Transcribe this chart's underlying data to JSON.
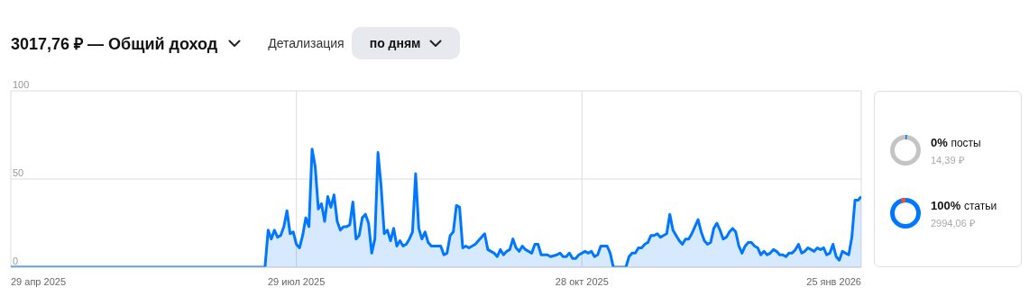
{
  "chart_data": [
    {
      "type": "area",
      "title": "3017,76 ₽ — Общий доход",
      "annotations": [
        "Детализация",
        "по дням"
      ],
      "xlim": [
        "2025-04-29",
        "2026-01-25"
      ],
      "xticks": [
        {
          "value": "2025-04-29",
          "label": "29 апр 2025"
        },
        {
          "value": "2025-07-29",
          "label": "29 июл 2025"
        },
        {
          "value": "2025-10-28",
          "label": "28 окт 2025"
        },
        {
          "value": "2026-01-25",
          "label": "25 янв 2026"
        }
      ],
      "ylim": [
        0,
        100
      ],
      "yticks": [
        0,
        50,
        100
      ],
      "grid": true,
      "marker": "none",
      "series": [
        {
          "color": "#0077ff",
          "x": [
            "2025-04-29",
            "2025-07-19",
            "2025-07-20",
            "2025-07-21",
            "2025-07-22",
            "2025-07-23",
            "2025-07-24",
            "2025-07-25",
            "2025-07-26",
            "2025-07-27",
            "2025-07-28",
            "2025-07-29",
            "2025-07-30",
            "2025-07-31",
            "2025-08-01",
            "2025-08-02",
            "2025-08-03",
            "2025-08-04",
            "2025-08-05",
            "2025-08-06",
            "2025-08-07",
            "2025-08-08",
            "2025-08-09",
            "2025-08-10",
            "2025-08-11",
            "2025-08-12",
            "2025-08-13",
            "2025-08-14",
            "2025-08-15",
            "2025-08-16",
            "2025-08-17",
            "2025-08-18",
            "2025-08-19",
            "2025-08-20",
            "2025-08-21",
            "2025-08-22",
            "2025-08-23",
            "2025-08-24",
            "2025-08-25",
            "2025-08-26",
            "2025-08-27",
            "2025-08-28",
            "2025-08-29",
            "2025-08-30",
            "2025-08-31",
            "2025-09-01",
            "2025-09-02",
            "2025-09-03",
            "2025-09-04",
            "2025-09-05",
            "2025-09-06",
            "2025-09-07",
            "2025-09-08",
            "2025-09-09",
            "2025-09-10",
            "2025-09-11",
            "2025-09-12",
            "2025-09-13",
            "2025-09-14",
            "2025-09-15",
            "2025-09-16",
            "2025-09-17",
            "2025-09-18",
            "2025-09-19",
            "2025-09-20",
            "2025-09-21",
            "2025-09-22",
            "2025-09-23",
            "2025-09-24",
            "2025-09-25",
            "2025-09-27",
            "2025-09-28",
            "2025-09-29",
            "2025-09-30",
            "2025-10-01",
            "2025-10-02",
            "2025-10-03",
            "2025-10-04",
            "2025-10-05",
            "2025-10-06",
            "2025-10-07",
            "2025-10-08",
            "2025-10-09",
            "2025-10-10",
            "2025-10-11",
            "2025-10-12",
            "2025-10-13",
            "2025-10-14",
            "2025-10-15",
            "2025-10-17",
            "2025-10-18",
            "2025-10-20",
            "2025-10-21",
            "2025-10-22",
            "2025-10-23",
            "2025-10-24",
            "2025-10-25",
            "2025-10-26",
            "2025-10-27",
            "2025-10-28",
            "2025-10-29",
            "2025-10-30",
            "2025-10-31",
            "2025-11-01",
            "2025-11-02",
            "2025-11-03",
            "2025-11-04",
            "2025-11-05",
            "2025-11-06",
            "2025-11-07",
            "2025-11-11",
            "2025-11-12",
            "2025-11-13",
            "2025-11-14",
            "2025-11-15",
            "2025-11-16",
            "2025-11-17",
            "2025-11-18",
            "2025-11-19",
            "2025-11-20",
            "2025-11-21",
            "2025-11-22",
            "2025-11-23",
            "2025-11-24",
            "2025-11-25",
            "2025-11-26",
            "2025-11-27",
            "2025-11-28",
            "2025-11-29",
            "2025-11-30",
            "2025-12-01",
            "2025-12-02",
            "2025-12-03",
            "2025-12-04",
            "2025-12-05",
            "2025-12-06",
            "2025-12-07",
            "2025-12-08",
            "2025-12-09",
            "2025-12-10",
            "2025-12-11",
            "2025-12-12",
            "2025-12-13",
            "2025-12-14",
            "2025-12-15",
            "2025-12-16",
            "2025-12-17",
            "2025-12-18",
            "2025-12-19",
            "2025-12-20",
            "2025-12-21",
            "2025-12-22",
            "2025-12-23",
            "2025-12-24",
            "2025-12-25",
            "2025-12-26",
            "2025-12-27",
            "2025-12-28",
            "2025-12-29",
            "2025-12-30",
            "2025-12-31",
            "2026-01-01",
            "2026-01-02",
            "2026-01-03",
            "2026-01-04",
            "2026-01-05",
            "2026-01-06",
            "2026-01-07",
            "2026-01-08",
            "2026-01-09",
            "2026-01-10",
            "2026-01-11",
            "2026-01-12",
            "2026-01-13",
            "2026-01-14",
            "2026-01-15",
            "2026-01-16",
            "2026-01-17",
            "2026-01-18",
            "2026-01-19",
            "2026-01-20",
            "2026-01-21",
            "2026-01-22",
            "2026-01-23",
            "2026-01-24",
            "2026-01-25"
          ],
          "values": [
            0,
            0,
            21,
            16,
            21,
            17,
            18,
            23,
            32,
            19,
            20,
            13,
            11,
            18,
            28,
            23,
            67,
            57,
            33,
            36,
            26,
            40,
            34,
            41,
            26,
            21,
            23,
            23,
            24,
            37,
            16,
            18,
            28,
            30,
            25,
            8,
            16,
            65,
            46,
            19,
            21,
            15,
            22,
            12,
            15,
            12,
            13,
            16,
            20,
            53,
            22,
            16,
            20,
            14,
            12,
            12,
            12,
            12,
            7,
            8,
            18,
            20,
            35,
            34,
            11,
            12,
            11,
            12,
            13,
            15,
            19,
            10,
            9,
            8,
            6,
            10,
            7,
            9,
            10,
            16,
            11,
            9,
            12,
            10,
            9,
            8,
            13,
            13,
            7,
            7,
            6,
            7,
            8,
            6,
            6,
            8,
            5,
            5,
            7,
            8,
            9,
            8,
            9,
            6,
            7,
            12,
            12,
            12,
            8,
            0,
            0,
            6,
            8,
            8,
            11,
            11,
            13,
            14,
            18,
            18,
            19,
            17,
            18,
            19,
            30,
            21,
            18,
            15,
            13,
            16,
            16,
            19,
            23,
            27,
            20,
            15,
            13,
            14,
            22,
            25,
            21,
            16,
            17,
            20,
            22,
            20,
            12,
            8,
            12,
            14,
            14,
            12,
            11,
            7,
            9,
            7,
            8,
            10,
            9,
            7,
            7,
            6,
            8,
            8,
            10,
            13,
            8,
            9,
            11,
            10,
            9,
            11,
            10,
            11,
            7,
            8,
            13,
            6,
            4,
            9,
            8,
            7,
            17,
            38,
            38,
            40
          ]
        }
      ]
    },
    {
      "type": "other",
      "annotations": [
        "0%",
        "посты",
        "14,39 ₽",
        "100%",
        "статьи",
        "2994,06 ₽"
      ]
    }
  ]
}
